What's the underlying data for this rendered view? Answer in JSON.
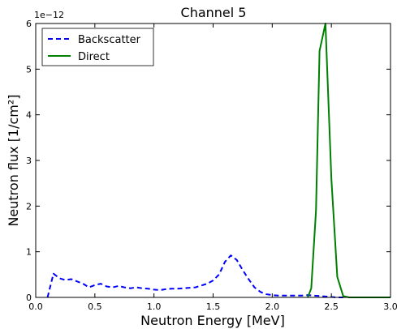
{
  "chart_data": {
    "type": "line",
    "title": "Channel 5",
    "xlabel": "Neutron Energy [MeV]",
    "ylabel": "Neutron flux [1/cm²]",
    "y_offset_label": "1e−12",
    "xlim": [
      0.0,
      3.0
    ],
    "ylim": [
      0,
      6
    ],
    "x_ticks": [
      "0.0",
      "0.5",
      "1.0",
      "1.5",
      "2.0",
      "2.5",
      "3.0"
    ],
    "y_ticks": [
      "0",
      "1",
      "2",
      "3",
      "4",
      "5",
      "6"
    ],
    "legend_position": "top-left",
    "grid": false,
    "series": [
      {
        "name": "Backscatter",
        "color": "#0000ff",
        "style": "dashed",
        "x": [
          0.1,
          0.15,
          0.2,
          0.25,
          0.3,
          0.35,
          0.4,
          0.45,
          0.5,
          0.55,
          0.6,
          0.65,
          0.7,
          0.75,
          0.8,
          0.85,
          0.9,
          0.95,
          1.0,
          1.05,
          1.1,
          1.15,
          1.2,
          1.25,
          1.3,
          1.35,
          1.4,
          1.45,
          1.5,
          1.55,
          1.6,
          1.65,
          1.7,
          1.75,
          1.8,
          1.85,
          1.9,
          1.95,
          2.0,
          2.05,
          2.1,
          2.15,
          2.2,
          2.25,
          2.3,
          2.35,
          2.4,
          2.45,
          2.5,
          2.55,
          2.6
        ],
        "y": [
          0.0,
          0.52,
          0.42,
          0.38,
          0.4,
          0.35,
          0.3,
          0.22,
          0.27,
          0.3,
          0.24,
          0.22,
          0.25,
          0.22,
          0.2,
          0.22,
          0.2,
          0.19,
          0.17,
          0.16,
          0.18,
          0.19,
          0.19,
          0.2,
          0.21,
          0.22,
          0.26,
          0.3,
          0.37,
          0.5,
          0.78,
          0.92,
          0.82,
          0.6,
          0.4,
          0.22,
          0.12,
          0.07,
          0.05,
          0.04,
          0.04,
          0.04,
          0.04,
          0.04,
          0.05,
          0.04,
          0.03,
          0.02,
          0.01,
          0.0,
          0.0
        ]
      },
      {
        "name": "Direct",
        "color": "#008000",
        "style": "solid",
        "x": [
          2.3,
          2.33,
          2.37,
          2.4,
          2.45,
          2.5,
          2.55,
          2.6,
          2.65,
          2.7,
          2.8,
          3.0
        ],
        "y": [
          0.0,
          0.2,
          1.9,
          5.4,
          6.0,
          2.6,
          0.45,
          0.03,
          0.0,
          0.0,
          0.0,
          0.0
        ]
      }
    ]
  }
}
